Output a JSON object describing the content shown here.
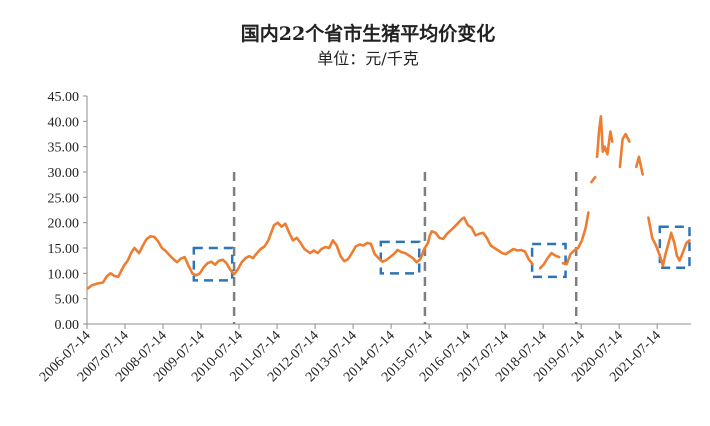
{
  "chart_data": {
    "type": "line",
    "title": "国内22个省市生猪平均价变化",
    "subtitle": "单位：元/千克",
    "xlabel": "",
    "ylabel": "",
    "ylim": [
      0,
      45
    ],
    "yticks": [
      "0.00",
      "5.00",
      "10.00",
      "15.00",
      "20.00",
      "25.00",
      "30.00",
      "35.00",
      "40.00",
      "45.00"
    ],
    "xticks": [
      "2006-07-14",
      "2007-07-14",
      "2008-07-14",
      "2009-07-14",
      "2010-07-14",
      "2011-07-14",
      "2012-07-14",
      "2013-07-14",
      "2014-07-14",
      "2015-07-14",
      "2016-07-14",
      "2017-07-14",
      "2018-07-14",
      "2019-07-14",
      "2020-07-14",
      "2021-07-14"
    ],
    "grid": false,
    "line_color": "#ED7D31",
    "series": [
      {
        "points": [
          [
            2006.55,
            7.0
          ],
          [
            2006.65,
            7.6
          ],
          [
            2006.8,
            8.0
          ],
          [
            2006.95,
            8.2
          ],
          [
            2007.05,
            9.4
          ],
          [
            2007.15,
            10.0
          ],
          [
            2007.25,
            9.5
          ],
          [
            2007.35,
            9.3
          ],
          [
            2007.5,
            11.5
          ],
          [
            2007.6,
            12.5
          ],
          [
            2007.7,
            14.2
          ],
          [
            2007.78,
            15.0
          ],
          [
            2007.9,
            14.0
          ],
          [
            2008.0,
            15.5
          ],
          [
            2008.1,
            16.8
          ],
          [
            2008.2,
            17.3
          ],
          [
            2008.3,
            17.2
          ],
          [
            2008.4,
            16.3
          ],
          [
            2008.5,
            15.0
          ],
          [
            2008.6,
            14.4
          ],
          [
            2008.7,
            13.6
          ],
          [
            2008.8,
            12.8
          ],
          [
            2008.9,
            12.2
          ],
          [
            2009.0,
            12.9
          ],
          [
            2009.1,
            13.2
          ],
          [
            2009.2,
            11.5
          ],
          [
            2009.3,
            10.0
          ],
          [
            2009.4,
            9.6
          ],
          [
            2009.5,
            10.0
          ],
          [
            2009.6,
            11.2
          ],
          [
            2009.7,
            12.0
          ],
          [
            2009.8,
            12.3
          ],
          [
            2009.9,
            11.7
          ],
          [
            2010.0,
            12.5
          ],
          [
            2010.1,
            12.7
          ],
          [
            2010.2,
            12.0
          ],
          [
            2010.3,
            10.7
          ],
          [
            2010.4,
            9.8
          ],
          [
            2010.5,
            10.8
          ],
          [
            2010.6,
            12.2
          ],
          [
            2010.7,
            13.0
          ],
          [
            2010.8,
            13.4
          ],
          [
            2010.9,
            13.0
          ],
          [
            2011.0,
            14.0
          ],
          [
            2011.1,
            14.8
          ],
          [
            2011.2,
            15.3
          ],
          [
            2011.3,
            16.5
          ],
          [
            2011.45,
            19.5
          ],
          [
            2011.55,
            20.0
          ],
          [
            2011.65,
            19.2
          ],
          [
            2011.75,
            19.8
          ],
          [
            2011.85,
            18.0
          ],
          [
            2011.95,
            16.5
          ],
          [
            2012.05,
            17.0
          ],
          [
            2012.15,
            16.0
          ],
          [
            2012.25,
            14.8
          ],
          [
            2012.4,
            14.0
          ],
          [
            2012.5,
            14.5
          ],
          [
            2012.6,
            14.0
          ],
          [
            2012.7,
            14.8
          ],
          [
            2012.8,
            15.2
          ],
          [
            2012.9,
            15.0
          ],
          [
            2013.0,
            16.5
          ],
          [
            2013.1,
            15.5
          ],
          [
            2013.2,
            13.4
          ],
          [
            2013.3,
            12.4
          ],
          [
            2013.4,
            12.8
          ],
          [
            2013.5,
            14.0
          ],
          [
            2013.6,
            15.3
          ],
          [
            2013.7,
            15.7
          ],
          [
            2013.8,
            15.5
          ],
          [
            2013.9,
            16.0
          ],
          [
            2014.0,
            15.8
          ],
          [
            2014.1,
            13.8
          ],
          [
            2014.2,
            13.0
          ],
          [
            2014.3,
            12.3
          ],
          [
            2014.4,
            12.6
          ],
          [
            2014.5,
            13.2
          ],
          [
            2014.6,
            13.8
          ],
          [
            2014.7,
            14.6
          ],
          [
            2014.8,
            14.2
          ],
          [
            2014.9,
            14.0
          ],
          [
            2015.0,
            13.5
          ],
          [
            2015.1,
            13.0
          ],
          [
            2015.2,
            12.2
          ],
          [
            2015.3,
            12.8
          ],
          [
            2015.4,
            14.8
          ],
          [
            2015.5,
            16.0
          ],
          [
            2015.55,
            17.5
          ],
          [
            2015.6,
            18.3
          ],
          [
            2015.7,
            18.0
          ],
          [
            2015.8,
            17.0
          ],
          [
            2015.9,
            16.8
          ],
          [
            2016.0,
            17.8
          ],
          [
            2016.1,
            18.5
          ],
          [
            2016.2,
            19.2
          ],
          [
            2016.3,
            20.0
          ],
          [
            2016.4,
            20.8
          ],
          [
            2016.45,
            21.0
          ],
          [
            2016.55,
            19.5
          ],
          [
            2016.65,
            19.0
          ],
          [
            2016.75,
            17.5
          ],
          [
            2016.85,
            17.8
          ],
          [
            2016.95,
            18.0
          ],
          [
            2017.05,
            17.0
          ],
          [
            2017.15,
            15.5
          ],
          [
            2017.25,
            15.0
          ],
          [
            2017.35,
            14.5
          ],
          [
            2017.45,
            14.0
          ],
          [
            2017.55,
            13.8
          ],
          [
            2017.65,
            14.3
          ],
          [
            2017.75,
            14.8
          ],
          [
            2017.85,
            14.5
          ],
          [
            2017.95,
            14.6
          ],
          [
            2018.05,
            14.3
          ],
          [
            2018.15,
            12.8
          ],
          [
            2018.25,
            11.8
          ],
          [
            2018.35,
            11.2
          ],
          [
            2018.45,
            11.0
          ],
          [
            2018.55,
            11.8
          ],
          [
            2018.65,
            13.0
          ],
          [
            2018.75,
            14.0
          ],
          [
            2018.85,
            13.5
          ],
          [
            2018.95,
            13.2
          ],
          [
            2019.05,
            12.0
          ],
          [
            2019.15,
            11.8
          ],
          [
            2019.25,
            13.8
          ],
          [
            2019.35,
            14.5
          ],
          [
            2019.45,
            15.0
          ],
          [
            2019.55,
            16.5
          ],
          [
            2019.65,
            19.0
          ],
          [
            2019.72,
            22.0
          ],
          [
            2019.8,
            28.0
          ],
          [
            2019.9,
            29.0
          ],
          [
            2019.95,
            33.0
          ],
          [
            2020.0,
            38.0
          ],
          [
            2020.05,
            41.0
          ],
          [
            2020.1,
            34.0
          ],
          [
            2020.15,
            35.0
          ],
          [
            2020.22,
            33.5
          ],
          [
            2020.3,
            38.0
          ],
          [
            2020.35,
            36.0
          ],
          [
            2020.45,
            35.0
          ],
          [
            2020.55,
            31.0
          ],
          [
            2020.62,
            36.5
          ],
          [
            2020.7,
            37.5
          ],
          [
            2020.8,
            36.0
          ],
          [
            2020.9,
            30.0
          ],
          [
            2020.98,
            31.0
          ],
          [
            2021.05,
            33.0
          ],
          [
            2021.15,
            29.5
          ],
          [
            2021.22,
            26.0
          ],
          [
            2021.3,
            21.0
          ],
          [
            2021.4,
            17.0
          ],
          [
            2021.5,
            15.5
          ],
          [
            2021.6,
            13.5
          ],
          [
            2021.68,
            11.5
          ],
          [
            2021.75,
            13.8
          ],
          [
            2021.85,
            16.5
          ],
          [
            2021.9,
            18.0
          ],
          [
            2021.98,
            16.0
          ],
          [
            2022.05,
            13.5
          ],
          [
            2022.12,
            12.5
          ],
          [
            2022.2,
            14.0
          ],
          [
            2022.3,
            16.0
          ],
          [
            2022.38,
            16.5
          ]
        ]
      }
    ],
    "vlines_x": [
      2010.4,
      2015.42,
      2019.4
    ],
    "highlight_boxes": [
      {
        "x0": 2009.34,
        "x1": 2010.35,
        "y0": 8.6,
        "y1": 15.0
      },
      {
        "x0": 2014.26,
        "x1": 2015.27,
        "y0": 10.0,
        "y1": 16.2
      },
      {
        "x0": 2018.24,
        "x1": 2019.12,
        "y0": 9.3,
        "y1": 15.8
      },
      {
        "x0": 2021.6,
        "x1": 2022.38,
        "y0": 11.1,
        "y1": 19.2
      }
    ],
    "gaps": [
      [
        2018.3,
        2018.38
      ],
      [
        2018.95,
        2019.02
      ],
      [
        2019.75,
        2019.78
      ],
      [
        2019.9,
        2019.93
      ],
      [
        2020.42,
        2020.48
      ],
      [
        2020.88,
        2020.93
      ],
      [
        2021.2,
        2021.26
      ]
    ]
  }
}
